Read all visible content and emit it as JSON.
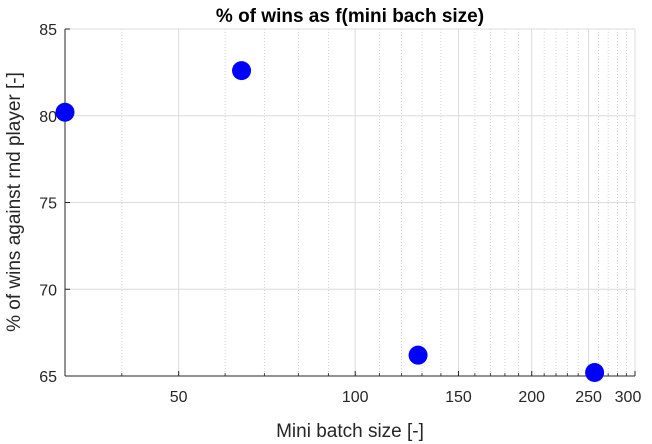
{
  "chart_data": {
    "type": "scatter",
    "title": "% of wins as f(mini bach size)",
    "xlabel": "Mini batch size [-]",
    "ylabel": "% of wins against rnd player [-]",
    "x_scale": "log",
    "xlim": [
      32,
      300
    ],
    "ylim": [
      65,
      85
    ],
    "x_ticks": [
      50,
      100,
      150,
      200,
      250,
      300
    ],
    "x_tick_labels": [
      "50",
      "100",
      "150",
      "200",
      "250",
      "300"
    ],
    "y_ticks": [
      65,
      70,
      75,
      80,
      85
    ],
    "y_tick_labels": [
      "65",
      "70",
      "75",
      "80",
      "85"
    ],
    "grid": true,
    "marker_color": "#0000ff",
    "points": [
      {
        "x": 32,
        "y": 80.2
      },
      {
        "x": 64,
        "y": 82.6
      },
      {
        "x": 128,
        "y": 66.2
      },
      {
        "x": 256,
        "y": 65.2
      }
    ]
  }
}
